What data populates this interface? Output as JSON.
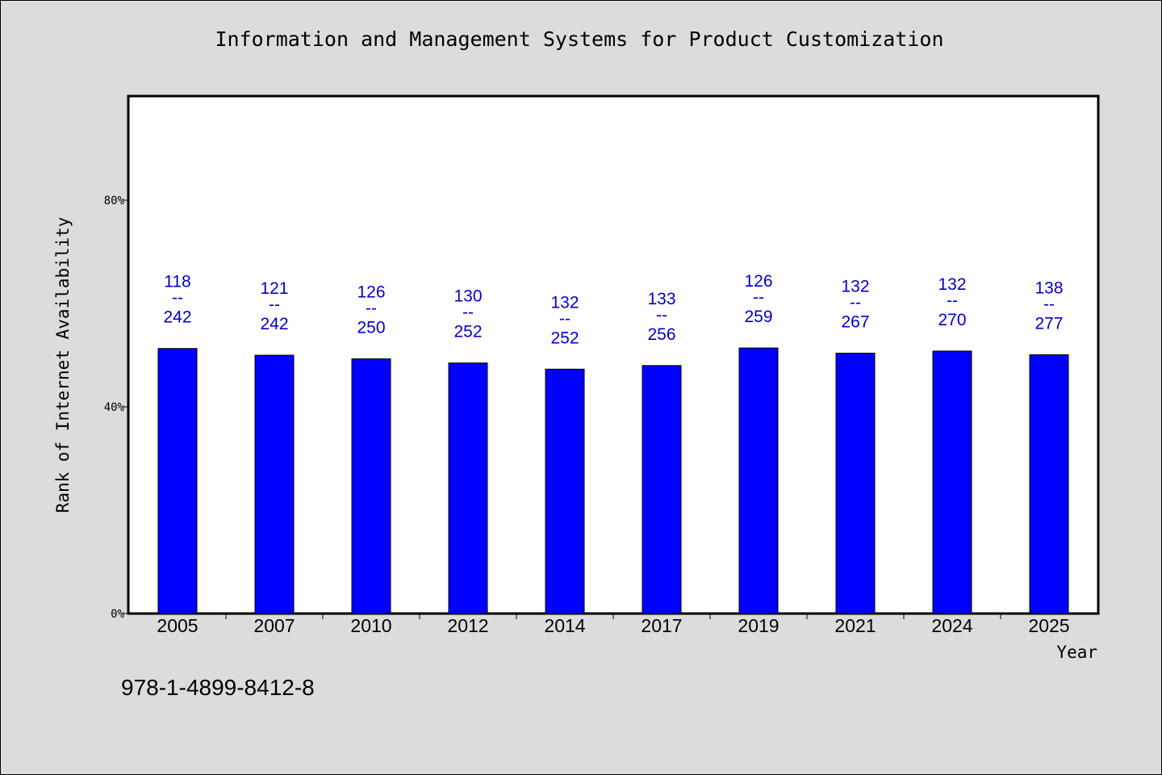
{
  "chart_data": {
    "type": "bar",
    "title": "Information and Management Systems for Product Customization",
    "xlabel": "Year",
    "ylabel": "Rank of Internet Availability",
    "categories": [
      "2005",
      "2007",
      "2010",
      "2012",
      "2014",
      "2017",
      "2019",
      "2021",
      "2024",
      "2025"
    ],
    "values": [
      51.3,
      50.0,
      49.3,
      48.5,
      47.3,
      48.0,
      51.4,
      50.4,
      50.8,
      50.1
    ],
    "data_labels": [
      {
        "top": "118",
        "sep": "--",
        "bottom": "242"
      },
      {
        "top": "121",
        "sep": "--",
        "bottom": "242"
      },
      {
        "top": "126",
        "sep": "--",
        "bottom": "250"
      },
      {
        "top": "130",
        "sep": "--",
        "bottom": "252"
      },
      {
        "top": "132",
        "sep": "--",
        "bottom": "252"
      },
      {
        "top": "133",
        "sep": "--",
        "bottom": "256"
      },
      {
        "top": "126",
        "sep": "--",
        "bottom": "259"
      },
      {
        "top": "132",
        "sep": "--",
        "bottom": "267"
      },
      {
        "top": "132",
        "sep": "--",
        "bottom": "270"
      },
      {
        "top": "138",
        "sep": "--",
        "bottom": "277"
      }
    ],
    "ylim": [
      0,
      100
    ],
    "yticks": [
      {
        "value": 0,
        "label": "0%"
      },
      {
        "value": 40,
        "label": "40%"
      },
      {
        "value": 80,
        "label": "80%"
      }
    ],
    "grid": false,
    "bar_color": "#0000ff",
    "label_color": "#0000cc"
  },
  "footer": {
    "isbn": "978-1-4899-8412-8"
  }
}
